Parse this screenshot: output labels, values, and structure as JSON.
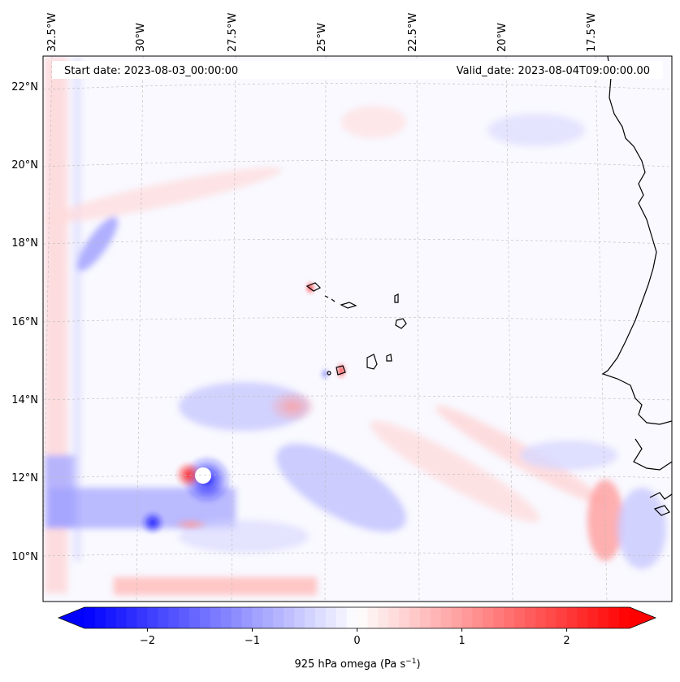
{
  "figure": {
    "start_date": "Start date: 2023-08-03_00:00:00",
    "valid_date": "Valid_date: 2023-08-04T09:00:00.00",
    "field": "925 hPa omega"
  },
  "map": {
    "lon_labels": [
      "32.5°W",
      "30°W",
      "27.5°W",
      "25°W",
      "22.5°W",
      "20°W",
      "17.5°W"
    ],
    "lat_labels": [
      "22°N",
      "20°N",
      "18°N",
      "16°N",
      "14°N",
      "12°N",
      "10°N"
    ],
    "lon_values": [
      -32.5,
      -30,
      -27.5,
      -25,
      -22.5,
      -20,
      -17.5
    ],
    "lat_values": [
      22,
      20,
      18,
      16,
      14,
      12,
      10
    ],
    "gridlines": true,
    "features": [
      "Cape Verde islands",
      "West African coastline",
      "vortex near 12°N 29.5°W"
    ]
  },
  "colorbar": {
    "ticks": [
      "−2",
      "−1",
      "0",
      "1",
      "2"
    ],
    "tick_values": [
      -2,
      -1,
      0,
      1,
      2
    ],
    "range": [
      -2.6,
      2.6
    ],
    "cmap": "bwr",
    "label_main": "925 hPa omega (Pa s",
    "label_exp": "−1",
    "label_close": ")",
    "colors": {
      "negative": "#0000ff",
      "zero": "#ffffff",
      "positive": "#ff0000"
    }
  }
}
